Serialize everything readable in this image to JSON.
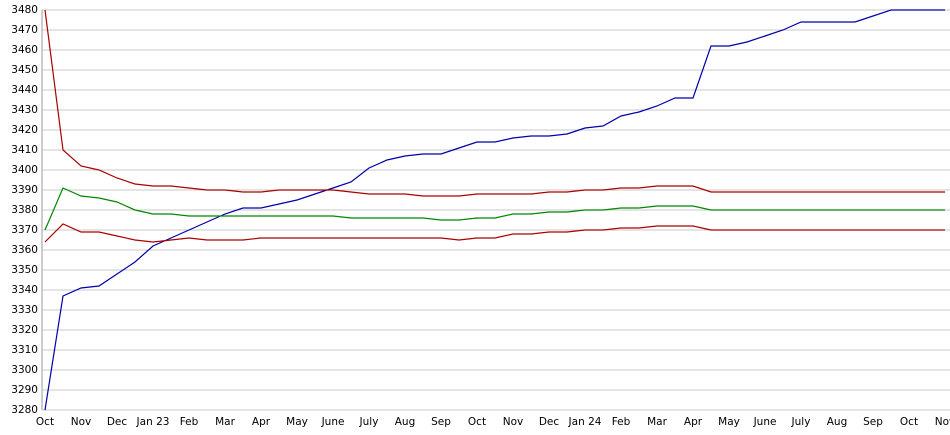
{
  "chart_data": {
    "type": "line",
    "categories": [
      "Oct",
      null,
      "Nov",
      null,
      "Dec",
      null,
      "Jan 23",
      null,
      "Feb",
      null,
      "Mar",
      null,
      "Apr",
      null,
      "May",
      null,
      "June",
      null,
      "July",
      null,
      "Aug",
      null,
      "Sep",
      null,
      "Oct",
      null,
      "Nov",
      null,
      "Dec",
      null,
      "Jan 24",
      null,
      "Feb",
      null,
      "Mar",
      null,
      "Apr",
      null,
      "May",
      null,
      "June",
      null,
      "July",
      null,
      "Aug",
      null,
      "Sep",
      null,
      "Oct",
      null,
      "Nov"
    ],
    "series": [
      {
        "color": "#0000aa",
        "values": [
          3280,
          3337,
          3341,
          3342,
          3348,
          3354,
          3362,
          3366,
          3370,
          3374,
          3378,
          3381,
          3381,
          3383,
          3385,
          3388,
          3391,
          3394,
          3401,
          3405,
          3407,
          3408,
          3408,
          3411,
          3414,
          3414,
          3416,
          3417,
          3417,
          3418,
          3421,
          3422,
          3427,
          3429,
          3432,
          3436,
          3436,
          3462,
          3462,
          3464,
          3467,
          3470,
          3474,
          3474,
          3474,
          3474,
          3477,
          3480,
          3480,
          3480,
          3480
        ]
      },
      {
        "color": "#aa0000",
        "values": [
          3480,
          3410,
          3402,
          3400,
          3396,
          3393,
          3392,
          3392,
          3391,
          3390,
          3390,
          3389,
          3389,
          3390,
          3390,
          3390,
          3390,
          3389,
          3388,
          3388,
          3388,
          3387,
          3387,
          3387,
          3388,
          3388,
          3388,
          3388,
          3389,
          3389,
          3390,
          3390,
          3391,
          3391,
          3392,
          3392,
          3392,
          3389,
          3389,
          3389,
          3389,
          3389,
          3389,
          3389,
          3389,
          3389,
          3389,
          3389,
          3389,
          3389,
          3389
        ]
      },
      {
        "color": "#008800",
        "values": [
          3370,
          3391,
          3387,
          3386,
          3384,
          3380,
          3378,
          3378,
          3377,
          3377,
          3377,
          3377,
          3377,
          3377,
          3377,
          3377,
          3377,
          3376,
          3376,
          3376,
          3376,
          3376,
          3375,
          3375,
          3376,
          3376,
          3378,
          3378,
          3379,
          3379,
          3380,
          3380,
          3381,
          3381,
          3382,
          3382,
          3382,
          3380,
          3380,
          3380,
          3380,
          3380,
          3380,
          3380,
          3380,
          3380,
          3380,
          3380,
          3380,
          3380,
          3380
        ]
      },
      {
        "color": "#aa0000",
        "values": [
          3364,
          3373,
          3369,
          3369,
          3367,
          3365,
          3364,
          3365,
          3366,
          3365,
          3365,
          3365,
          3366,
          3366,
          3366,
          3366,
          3366,
          3366,
          3366,
          3366,
          3366,
          3366,
          3366,
          3365,
          3366,
          3366,
          3368,
          3368,
          3369,
          3369,
          3370,
          3370,
          3371,
          3371,
          3372,
          3372,
          3372,
          3370,
          3370,
          3370,
          3370,
          3370,
          3370,
          3370,
          3370,
          3370,
          3370,
          3370,
          3370,
          3370,
          3370
        ]
      }
    ],
    "ylim": [
      3280,
      3480
    ],
    "yticks": [
      3280,
      3290,
      3300,
      3310,
      3320,
      3330,
      3340,
      3350,
      3360,
      3370,
      3380,
      3390,
      3400,
      3410,
      3420,
      3430,
      3440,
      3450,
      3460,
      3470,
      3480
    ],
    "grid": true
  }
}
